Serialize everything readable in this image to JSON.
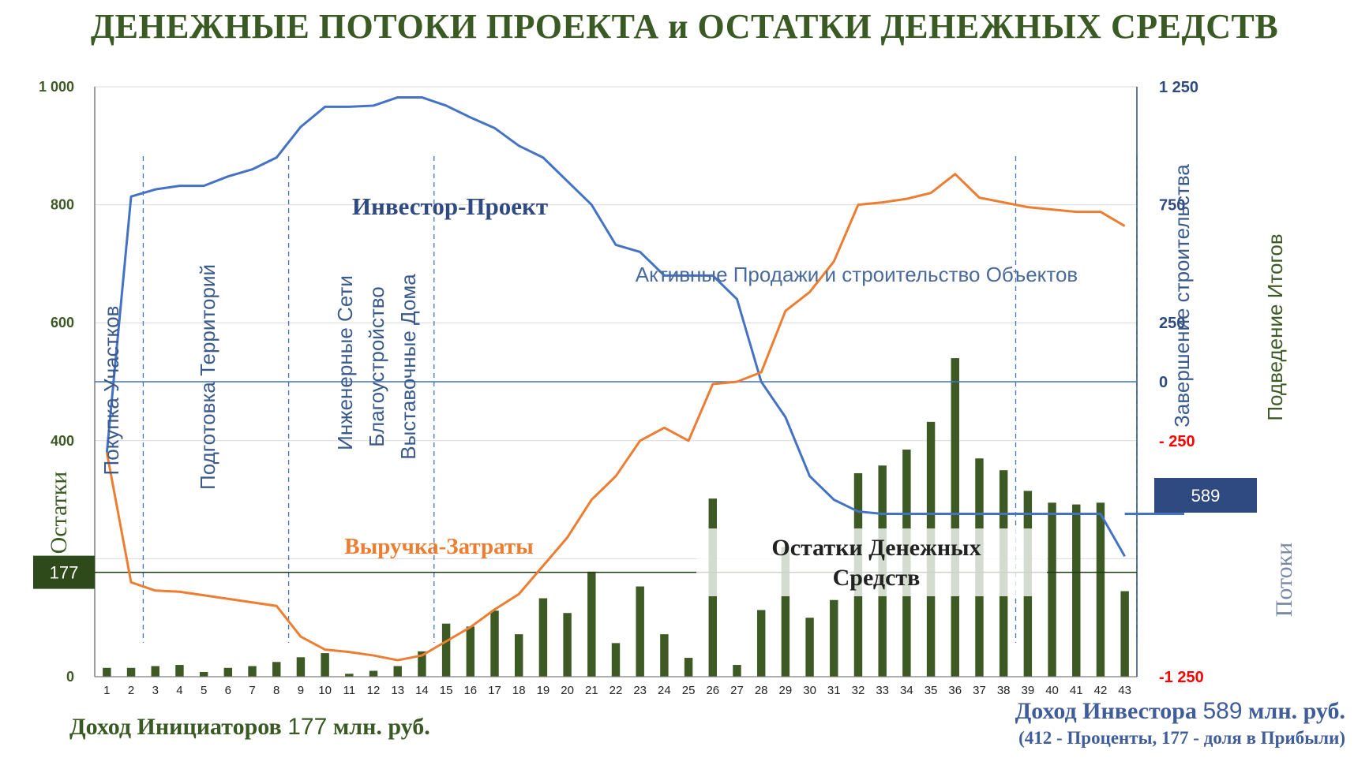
{
  "title": "ДЕНЕЖНЫЕ ПОТОКИ ПРОЕКТА и ОСТАТКИ ДЕНЕЖНЫХ СРЕДСТВ",
  "colors": {
    "green": "#3d5a24",
    "blue": "#4472c4",
    "orange": "#ed7d31",
    "red": "#ff0000",
    "navy": "#2e4a80"
  },
  "chart_data": {
    "type": "bar+line",
    "categories": [
      "1",
      "2",
      "3",
      "4",
      "5",
      "6",
      "7",
      "8",
      "9",
      "10",
      "11",
      "12",
      "13",
      "14",
      "15",
      "16",
      "17",
      "18",
      "19",
      "20",
      "21",
      "22",
      "23",
      "24",
      "25",
      "26",
      "27",
      "28",
      "29",
      "30",
      "31",
      "32",
      "33",
      "34",
      "35",
      "36",
      "37",
      "38",
      "39",
      "40",
      "41",
      "42",
      "43"
    ],
    "y_left": {
      "ticks": [
        "1 000",
        "800",
        "600",
        "400",
        "0"
      ],
      "tick_values": [
        1000,
        800,
        600,
        400,
        0
      ],
      "range": [
        0,
        1000
      ],
      "label": "Остатки"
    },
    "y_right": {
      "ticks": [
        "1 250",
        "750",
        "250",
        "0",
        "- 250",
        "-1 250"
      ],
      "tick_values": [
        1250,
        750,
        250,
        0,
        -250,
        -1250
      ],
      "range": [
        -1250,
        1250
      ],
      "label": "Потоки"
    },
    "bars": {
      "name": "Остатки Денежных Средств",
      "values": [
        15,
        15,
        18,
        20,
        8,
        15,
        18,
        25,
        33,
        40,
        5,
        10,
        18,
        43,
        90,
        85,
        112,
        72,
        133,
        108,
        178,
        57,
        153,
        72,
        32,
        302,
        20,
        113,
        220,
        100,
        130,
        345,
        358,
        385,
        432,
        540,
        370,
        350,
        315,
        295,
        292,
        295,
        145
      ]
    },
    "series": [
      {
        "name": "Инвестор-Проект",
        "axis": "right",
        "values": [
          -300,
          785,
          815,
          830,
          830,
          870,
          900,
          950,
          1080,
          1165,
          1165,
          1170,
          1205,
          1205,
          1170,
          1120,
          1075,
          1000,
          950,
          850,
          750,
          580,
          550,
          450,
          450,
          450,
          350,
          0,
          -150,
          -400,
          -500,
          -550,
          -560,
          -560,
          -560,
          -560,
          -560,
          -560,
          -560,
          -560,
          -560,
          -560,
          -740
        ]
      },
      {
        "name": "Выручка-Затраты",
        "axis": "right",
        "values": [
          -300,
          -850,
          -885,
          -890,
          -905,
          -920,
          -935,
          -950,
          -1080,
          -1135,
          -1145,
          -1160,
          -1180,
          -1160,
          -1100,
          -1040,
          -965,
          -900,
          -780,
          -660,
          -500,
          -400,
          -250,
          -195,
          -250,
          -10,
          0,
          40,
          300,
          380,
          510,
          750,
          760,
          775,
          800,
          880,
          780,
          760,
          740,
          730,
          720,
          720,
          660
        ]
      }
    ],
    "hline": {
      "label": "177",
      "value": 177,
      "axis": "left"
    },
    "end_label": {
      "label": "589",
      "value": -560,
      "axis": "right"
    }
  },
  "annotations": {
    "phases": [
      "Покупка Участков",
      "Подготовка Территорий",
      "Инженерные Сети",
      "Благоустройство",
      "Выставочные Дома",
      "Активные Продажи и строительство Объектов",
      "Завершение строительства",
      "Подведение Итогов"
    ],
    "investor_project": "Инвестор-Проект",
    "revenue_costs": "Выручка-Затраты",
    "cash_balance_1": "Остатки Денежных",
    "cash_balance_2": "Средств"
  },
  "footer": {
    "initiators_label": "Доход Инициаторов",
    "initiators_value": "177",
    "initiators_unit": "млн. руб.",
    "investor_label": "Доход Инвестора",
    "investor_value": "589",
    "investor_unit": "млн. руб.",
    "investor_note": "(412 - Проценты, 177 - доля в Прибыли)"
  }
}
